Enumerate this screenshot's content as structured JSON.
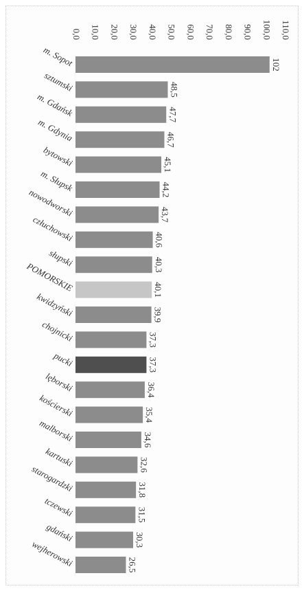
{
  "chart_data": {
    "type": "bar",
    "orientation": "horizontal",
    "rotation": "rotated 90° clockwise",
    "categories": [
      "m. Sopot",
      "sztumski",
      "m. Gdańsk",
      "m. Gdynia",
      "bytowski",
      "m. Słupsk",
      "nowodworski",
      "człuchowski",
      "słupski",
      "POMORSKIE",
      "kwidzyński",
      "chojnicki",
      "pucki",
      "lęborski",
      "kościerski",
      "malborski",
      "kartuski",
      "starogardzki",
      "tczewski",
      "gdański",
      "wejherowski"
    ],
    "values": [
      102,
      48.5,
      47.7,
      46.7,
      45.1,
      44.2,
      43.7,
      40.6,
      40.3,
      40.1,
      39.9,
      37.3,
      37.3,
      36.4,
      35.4,
      34.6,
      32.6,
      31.8,
      31.5,
      30.3,
      26.5
    ],
    "value_labels": [
      "102",
      "48,5",
      "47,7",
      "46,7",
      "45,1",
      "44,2",
      "43,7",
      "40,6",
      "40,3",
      "40,1",
      "39,9",
      "37,3",
      "37,3",
      "36,4",
      "35,4",
      "34,6",
      "32,6",
      "31,8",
      "31,5",
      "30,3",
      "26,5"
    ],
    "ticks": [
      "0,0",
      "10,0",
      "20,0",
      "30,0",
      "40,0",
      "50,0",
      "60,0",
      "70,0",
      "80,0",
      "90,0",
      "100,0",
      "110,0"
    ],
    "xlim": [
      0,
      110
    ],
    "grid": false,
    "legend": "none",
    "colors": {
      "default": "#8c8c8c",
      "POMORSKIE": "#c6c6c6",
      "pucki": "#4f4f4f",
      "text": "#333333"
    }
  }
}
